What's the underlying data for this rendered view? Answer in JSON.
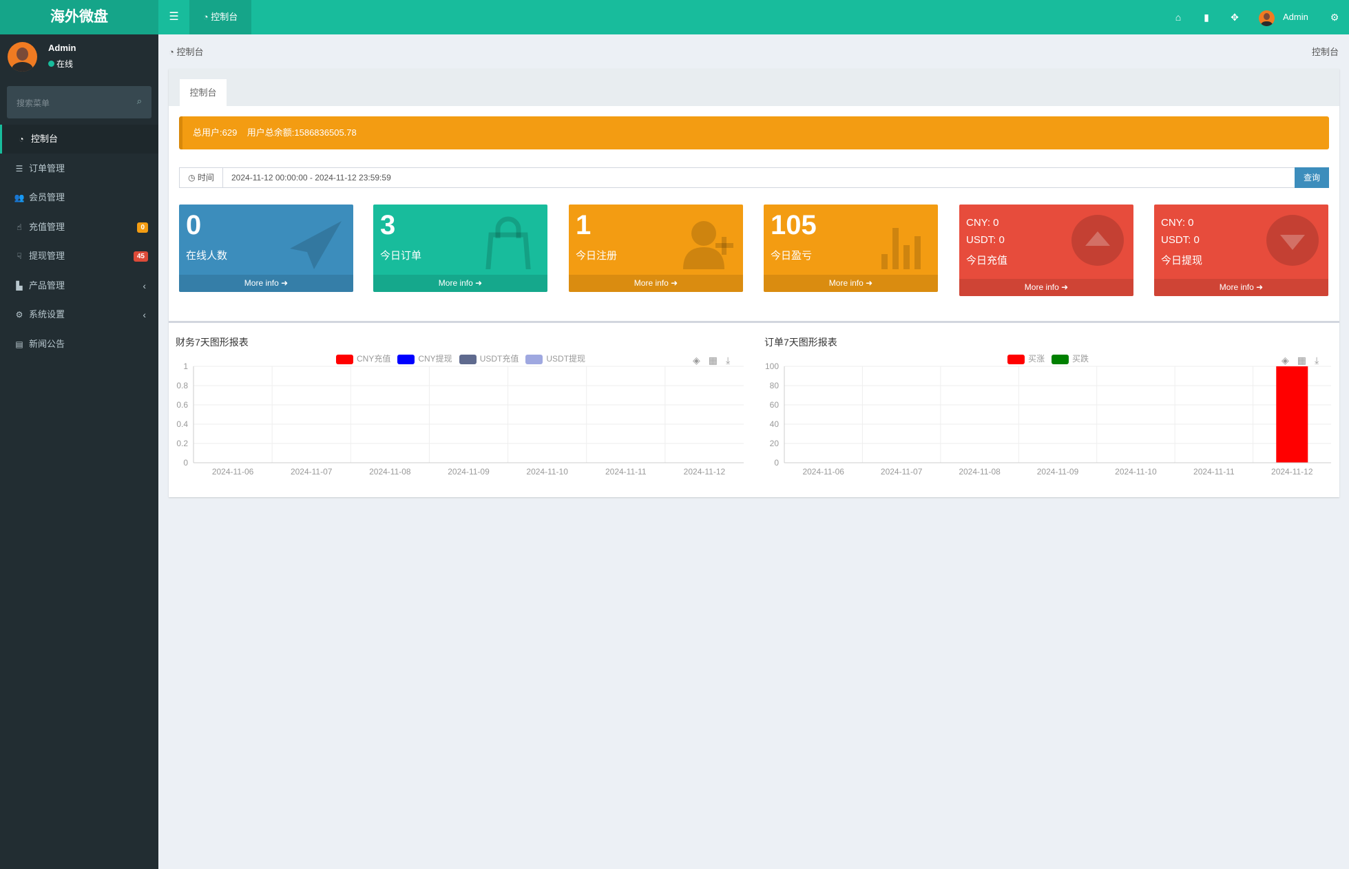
{
  "app": {
    "logo": "海外微盘"
  },
  "topbar": {
    "tab_label": "控制台",
    "user_name": "Admin",
    "icons": [
      "bars-icon",
      "home-icon",
      "trash-icon",
      "fullscreen-icon",
      "gears-icon"
    ]
  },
  "sidebar": {
    "user": {
      "name": "Admin",
      "status": "在线",
      "status_color": "#18bc9c"
    },
    "search_placeholder": "搜索菜单",
    "items": [
      {
        "label": "控制台",
        "icon": "dashboard-icon",
        "active": true
      },
      {
        "label": "订单管理",
        "icon": "list-icon"
      },
      {
        "label": "会员管理",
        "icon": "users-icon"
      },
      {
        "label": "充值管理",
        "icon": "hand-up-icon",
        "badge": "0",
        "badge_color": "#f39c12"
      },
      {
        "label": "提现管理",
        "icon": "hand-down-icon",
        "badge": "45",
        "badge_color": "#dd4b39"
      },
      {
        "label": "产品管理",
        "icon": "shopping-bag-icon",
        "chevron": "‹"
      },
      {
        "label": "系统设置",
        "icon": "gears-icon",
        "chevron": "‹"
      },
      {
        "label": "新闻公告",
        "icon": "newspaper-icon"
      }
    ]
  },
  "breadcrumb": {
    "left": "控制台",
    "right": "控制台"
  },
  "main": {
    "tab": "控制台",
    "alert": {
      "total_users": "总用户:629",
      "total_balance": "用户总余额:1586836505.78"
    },
    "time_filter": {
      "label": "时间",
      "value": "2024-11-12 00:00:00 - 2024-11-12 23:59:59",
      "button": "查询"
    },
    "more_info": "More info",
    "boxes": [
      {
        "value": "0",
        "label": "在线人数",
        "color": "#3c8dbc",
        "icon": "paper-plane-icon"
      },
      {
        "value": "3",
        "label": "今日订单",
        "color": "#18bc9c",
        "icon": "shopping-bag-icon"
      },
      {
        "value": "1",
        "label": "今日注册",
        "color": "#f39c12",
        "icon": "user-plus-icon"
      },
      {
        "value": "105",
        "label": "今日盈亏",
        "color": "#f39c12",
        "icon": "bar-chart-icon"
      },
      {
        "cny": "CNY:  0",
        "usdt": "USDT:  0",
        "label": "今日充值",
        "color": "#e74c3c",
        "icon": "arrow-up-circle-icon"
      },
      {
        "cny": "CNY:  0",
        "usdt": "USDT:  0",
        "label": "今日提现",
        "color": "#e74c3c",
        "icon": "arrow-down-circle-icon"
      }
    ]
  },
  "chart_data": [
    {
      "type": "bar",
      "title": "财务7天图形报表",
      "categories": [
        "2024-11-06",
        "2024-11-07",
        "2024-11-08",
        "2024-11-09",
        "2024-11-10",
        "2024-11-11",
        "2024-11-12"
      ],
      "ylim": [
        0,
        1
      ],
      "yticks": [
        "0",
        "0.2",
        "0.4",
        "0.6",
        "0.8",
        "1"
      ],
      "grid": true,
      "legend": "top",
      "series": [
        {
          "name": "CNY充值",
          "color": "#ff0000",
          "values": [
            0,
            0,
            0,
            0,
            0,
            0,
            0
          ]
        },
        {
          "name": "CNY提现",
          "color": "#0000ff",
          "values": [
            0,
            0,
            0,
            0,
            0,
            0,
            0
          ]
        },
        {
          "name": "USDT充值",
          "color": "#5f6a8e",
          "values": [
            0,
            0,
            0,
            0,
            0,
            0,
            0
          ]
        },
        {
          "name": "USDT提现",
          "color": "#9fa8e0",
          "values": [
            0,
            0,
            0,
            0,
            0,
            0,
            0
          ]
        }
      ]
    },
    {
      "type": "bar",
      "title": "订单7天图形报表",
      "categories": [
        "2024-11-06",
        "2024-11-07",
        "2024-11-08",
        "2024-11-09",
        "2024-11-10",
        "2024-11-11",
        "2024-11-12"
      ],
      "ylim": [
        0,
        100
      ],
      "yticks": [
        "0",
        "20",
        "40",
        "60",
        "80",
        "100"
      ],
      "grid": true,
      "legend": "top",
      "series": [
        {
          "name": "买涨",
          "color": "#ff0000",
          "values": [
            0,
            0,
            0,
            0,
            0,
            0,
            100
          ]
        },
        {
          "name": "买跌",
          "color": "#008000",
          "values": [
            0,
            0,
            0,
            0,
            0,
            0,
            0
          ]
        }
      ]
    }
  ]
}
